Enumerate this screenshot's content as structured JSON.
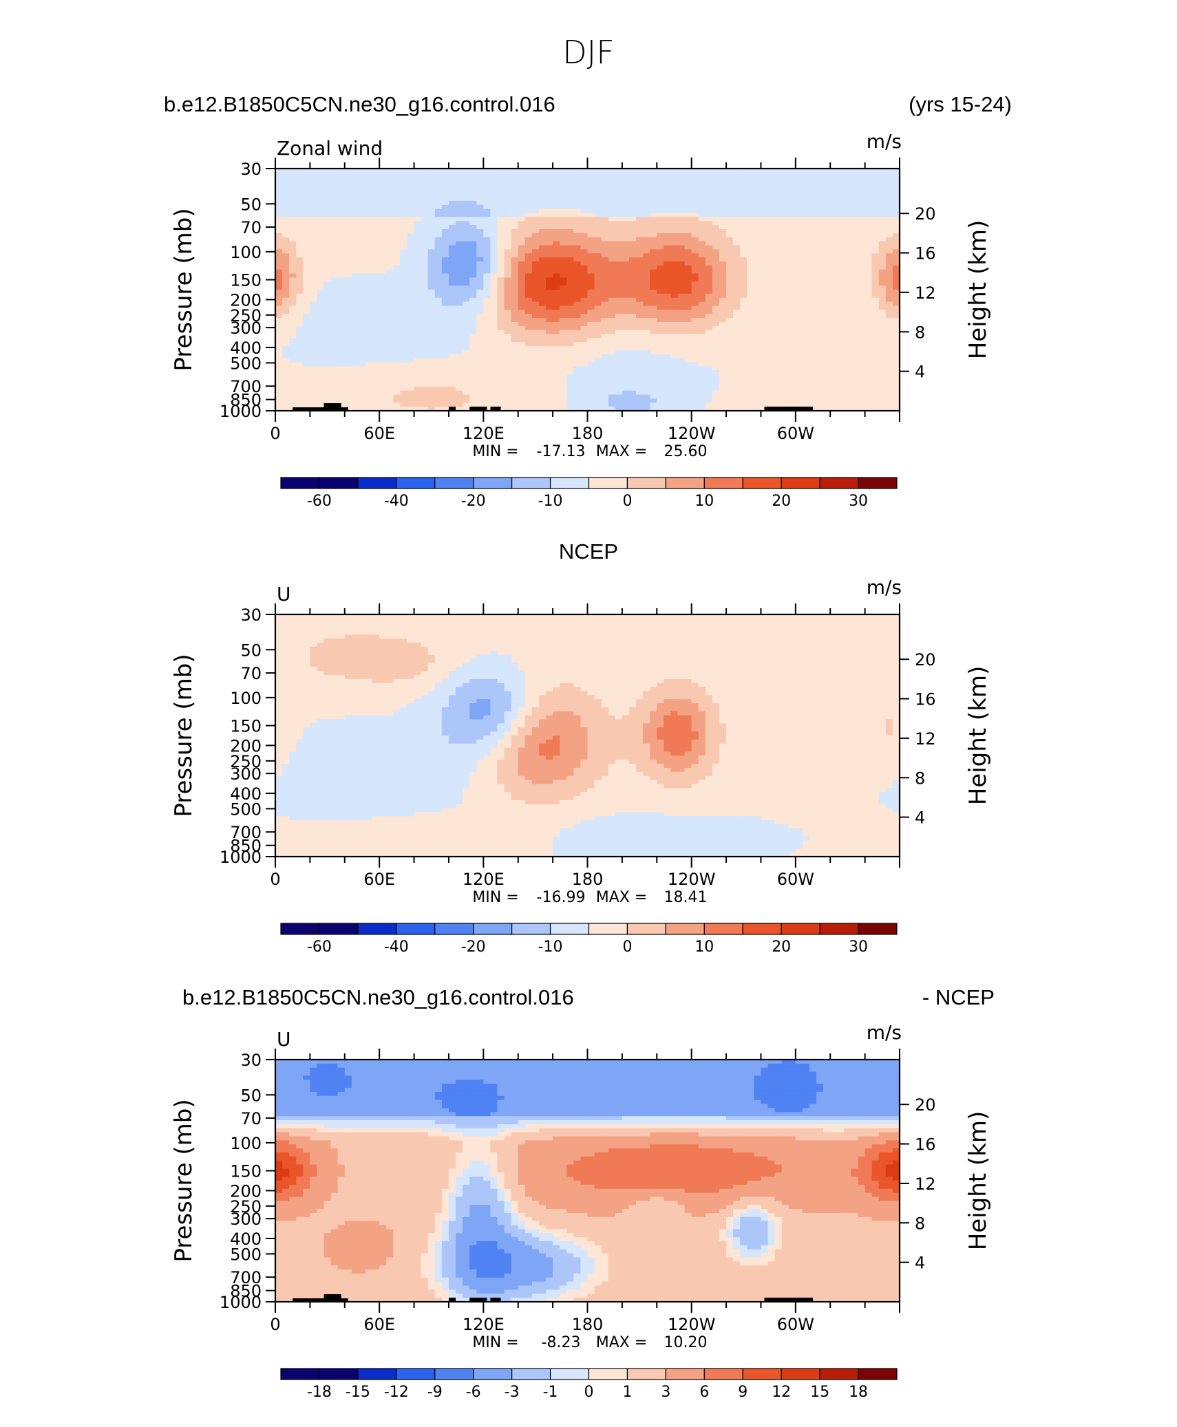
{
  "page_title": "DJF",
  "header_case": "b.e12.B1850C5CN.ne30_g16.control.016",
  "header_years": "(yrs 15-24)",
  "panel2_header": "NCEP",
  "panel3_header_left": "b.e12.B1850C5CN.ne30_g16.control.016",
  "panel3_header_right": "- NCEP",
  "chart_data": [
    {
      "type": "heatmap",
      "title": "",
      "variable_label": "Zonal wind",
      "units": "m/s",
      "xlabel": "",
      "ylabel": "Pressure (mb)",
      "ylabel_right": "Height (km)",
      "x_ticks": [
        "0",
        "60E",
        "120E",
        "180",
        "120W",
        "60W"
      ],
      "y_ticks": [
        "30",
        "50",
        "70",
        "100",
        "150",
        "200",
        "250",
        "300",
        "400",
        "500",
        "700",
        "850",
        "1000"
      ],
      "y_right_ticks": [
        "20",
        "16",
        "12",
        "8",
        "4"
      ],
      "y_scale": "log pressure",
      "ylim": [
        1000,
        30
      ],
      "xlim": [
        0,
        360
      ],
      "stats": {
        "min_label": "MIN =",
        "min": "-17.13",
        "max_label": "MAX =",
        "max": "25.60"
      },
      "colorbar_labels": [
        "-60",
        "-40",
        "-20",
        "-10",
        "0",
        "10",
        "20",
        "30"
      ],
      "features": [
        {
          "name": "westerly jet",
          "lon": 160,
          "p": 160,
          "value": 25.6
        },
        {
          "name": "westerly jet",
          "lon": 232,
          "p": 150,
          "value": 22
        },
        {
          "name": "westerly jet",
          "lon": 5,
          "p": 150,
          "value": 8
        },
        {
          "name": "easterly core",
          "lon": 118,
          "p": 120,
          "value": -17.1
        }
      ]
    },
    {
      "type": "heatmap",
      "title": "",
      "variable_label": "U",
      "units": "m/s",
      "xlabel": "",
      "ylabel": "Pressure (mb)",
      "ylabel_right": "Height (km)",
      "x_ticks": [
        "0",
        "60E",
        "120E",
        "180",
        "120W",
        "60W"
      ],
      "y_ticks": [
        "30",
        "50",
        "70",
        "100",
        "150",
        "200",
        "250",
        "300",
        "400",
        "500",
        "700",
        "850",
        "1000"
      ],
      "y_right_ticks": [
        "20",
        "16",
        "12",
        "8",
        "4"
      ],
      "y_scale": "log pressure",
      "ylim": [
        1000,
        30
      ],
      "xlim": [
        0,
        360
      ],
      "stats": {
        "min_label": "MIN =",
        "min": "-16.99",
        "max_label": "MAX =",
        "max": "18.41"
      },
      "colorbar_labels": [
        "-60",
        "-40",
        "-20",
        "-10",
        "0",
        "10",
        "20",
        "30"
      ],
      "features": [
        {
          "name": "westerly jet",
          "lon": 140,
          "p": 190,
          "value": 18.4
        },
        {
          "name": "westerly jet",
          "lon": 230,
          "p": 170,
          "value": 17
        },
        {
          "name": "easterly core",
          "lon": 125,
          "p": 130,
          "value": -17.0
        }
      ]
    },
    {
      "type": "heatmap",
      "title": "",
      "variable_label": "U",
      "units": "m/s",
      "xlabel": "",
      "ylabel": "Pressure (mb)",
      "ylabel_right": "Height (km)",
      "x_ticks": [
        "0",
        "60E",
        "120E",
        "180",
        "120W",
        "60W"
      ],
      "y_ticks": [
        "30",
        "50",
        "70",
        "100",
        "150",
        "200",
        "250",
        "300",
        "400",
        "500",
        "700",
        "850",
        "1000"
      ],
      "y_right_ticks": [
        "20",
        "16",
        "12",
        "8",
        "4"
      ],
      "y_scale": "log pressure",
      "ylim": [
        1000,
        30
      ],
      "xlim": [
        0,
        360
      ],
      "stats": {
        "min_label": "MIN =",
        "min": "-8.23",
        "max_label": "MAX =",
        "max": "10.20"
      },
      "colorbar_labels": [
        "-18",
        "-15",
        "-12",
        "-9",
        "-6",
        "-3",
        "-1",
        "0",
        "1",
        "3",
        "6",
        "9",
        "12",
        "15",
        "18"
      ],
      "features": [
        {
          "name": "negative band (upper levels)",
          "lon": 140,
          "p": 45,
          "value": -8.2
        },
        {
          "name": "positive band (jet level)",
          "lon": 230,
          "p": 150,
          "value": 10.2
        }
      ]
    }
  ],
  "colors": {
    "contour_palette_16": [
      "#08036f",
      "#0a2cc8",
      "#2a64ee",
      "#4f82f2",
      "#7fa6f6",
      "#acc6fa",
      "#d5e6fd",
      "#fde6d6",
      "#f8c8b0",
      "#f4a284",
      "#ef7a55",
      "#ea5529",
      "#db3c14",
      "#b81d08",
      "#7a0403"
    ]
  }
}
